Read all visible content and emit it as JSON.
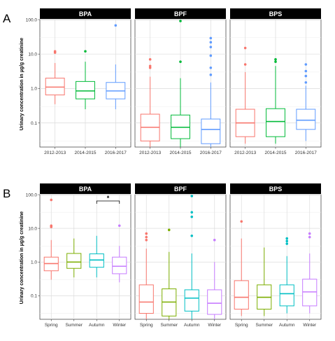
{
  "chart_data": [
    {
      "type": "boxplot",
      "panel_label": "A",
      "ylabel": "Urinary concentration in µg/g creatinine",
      "y_scale": "log10",
      "ylim": [
        0.02,
        100
      ],
      "yticks": [
        "0.1",
        "1.0",
        "10.0",
        "100.0"
      ],
      "grid": true,
      "categories": [
        "2012-2013",
        "2014-2015",
        "2016-2017"
      ],
      "colors": [
        "#F8766D",
        "#00BA38",
        "#619CFF"
      ],
      "facets": [
        {
          "name": "BPA",
          "boxes": [
            {
              "whisker_low": 0.35,
              "q1": 0.65,
              "median": 1.1,
              "q3": 2.0,
              "whisker_high": 5.5,
              "outliers": [
                11,
                12
              ]
            },
            {
              "whisker_low": 0.25,
              "q1": 0.5,
              "median": 0.85,
              "q3": 1.6,
              "whisker_high": 6.0,
              "outliers": [
                12
              ]
            },
            {
              "whisker_low": 0.25,
              "q1": 0.5,
              "median": 0.85,
              "q3": 1.5,
              "whisker_high": 5.0,
              "outliers": [
                68
              ]
            }
          ]
        },
        {
          "name": "BPF",
          "boxes": [
            {
              "whisker_low": 0.02,
              "q1": 0.03,
              "median": 0.075,
              "q3": 0.18,
              "whisker_high": 2.2,
              "outliers": [
                4,
                4.5,
                7
              ]
            },
            {
              "whisker_low": 0.02,
              "q1": 0.035,
              "median": 0.075,
              "q3": 0.17,
              "whisker_high": 2.0,
              "outliers": [
                6,
                100
              ]
            },
            {
              "whisker_low": 0.02,
              "q1": 0.025,
              "median": 0.065,
              "q3": 0.13,
              "whisker_high": 1.5,
              "outliers": [
                2.5,
                4,
                9,
                16,
                22,
                29
              ]
            }
          ]
        },
        {
          "name": "BPS",
          "boxes": [
            {
              "whisker_low": 0.025,
              "q1": 0.04,
              "median": 0.1,
              "q3": 0.25,
              "whisker_high": 3.0,
              "outliers": [
                5,
                15
              ]
            },
            {
              "whisker_low": 0.025,
              "q1": 0.04,
              "median": 0.11,
              "q3": 0.26,
              "whisker_high": 4.5,
              "outliers": [
                6,
                7
              ]
            },
            {
              "whisker_low": 0.03,
              "q1": 0.065,
              "median": 0.12,
              "q3": 0.25,
              "whisker_high": 1.2,
              "outliers": [
                1.5,
                2.3,
                3.2,
                5
              ]
            }
          ]
        }
      ]
    },
    {
      "type": "boxplot",
      "panel_label": "B",
      "ylabel": "Urinary concentration in µg/g creatinine",
      "y_scale": "log10",
      "ylim": [
        0.02,
        100
      ],
      "yticks": [
        "0.1",
        "1.0",
        "10.0",
        "100.0"
      ],
      "grid": true,
      "categories": [
        "Spring",
        "Summer",
        "Autumn",
        "Winter"
      ],
      "colors": [
        "#F8766D",
        "#7CAE00",
        "#00BFC4",
        "#C77CFF"
      ],
      "facets": [
        {
          "name": "BPA",
          "significance": {
            "from": "Autumn",
            "to": "Winter",
            "label": "*"
          },
          "boxes": [
            {
              "whisker_low": 0.3,
              "q1": 0.55,
              "median": 0.9,
              "q3": 1.4,
              "whisker_high": 4.5,
              "outliers": [
                11,
                12,
                70
              ]
            },
            {
              "whisker_low": 0.35,
              "q1": 0.65,
              "median": 1.0,
              "q3": 1.8,
              "whisker_high": 5.0,
              "outliers": []
            },
            {
              "whisker_low": 0.35,
              "q1": 0.7,
              "median": 1.15,
              "q3": 1.75,
              "whisker_high": 6.0,
              "outliers": []
            },
            {
              "whisker_low": 0.25,
              "q1": 0.45,
              "median": 0.75,
              "q3": 1.4,
              "whisker_high": 3.0,
              "outliers": [
                12
              ]
            }
          ]
        },
        {
          "name": "BPF",
          "boxes": [
            {
              "whisker_low": 0.02,
              "q1": 0.03,
              "median": 0.065,
              "q3": 0.21,
              "whisker_high": 2.5,
              "outliers": [
                4.5,
                5.5,
                7
              ]
            },
            {
              "whisker_low": 0.02,
              "q1": 0.025,
              "median": 0.065,
              "q3": 0.16,
              "whisker_high": 2.0,
              "outliers": [
                9
              ]
            },
            {
              "whisker_low": 0.02,
              "q1": 0.035,
              "median": 0.085,
              "q3": 0.15,
              "whisker_high": 1.8,
              "outliers": [
                6,
                22,
                30,
                100
              ]
            },
            {
              "whisker_low": 0.02,
              "q1": 0.028,
              "median": 0.06,
              "q3": 0.15,
              "whisker_high": 1.0,
              "outliers": [
                4.5
              ]
            }
          ]
        },
        {
          "name": "BPS",
          "boxes": [
            {
              "whisker_low": 0.025,
              "q1": 0.04,
              "median": 0.09,
              "q3": 0.28,
              "whisker_high": 5.0,
              "outliers": [
                16
              ]
            },
            {
              "whisker_low": 0.025,
              "q1": 0.04,
              "median": 0.09,
              "q3": 0.21,
              "whisker_high": 2.7,
              "outliers": []
            },
            {
              "whisker_low": 0.03,
              "q1": 0.05,
              "median": 0.115,
              "q3": 0.21,
              "whisker_high": 1.5,
              "outliers": [
                3.5,
                4.2,
                5
              ]
            },
            {
              "whisker_low": 0.03,
              "q1": 0.05,
              "median": 0.13,
              "q3": 0.31,
              "whisker_high": 1.8,
              "outliers": [
                5.5,
                7
              ]
            }
          ]
        }
      ]
    }
  ]
}
